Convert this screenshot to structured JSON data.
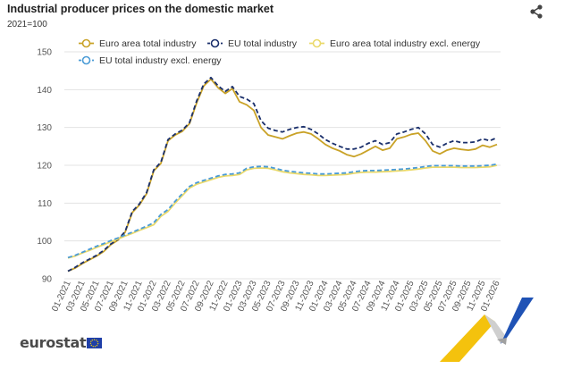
{
  "header": {
    "title": "Industrial producer prices on the domestic market",
    "subtitle": "2021=100",
    "share_icon": "share-icon"
  },
  "footer": {
    "logo_text": "eurostat",
    "flag_icon": "eu-flag-icon"
  },
  "colors": {
    "euro_area_total": "#c9a227",
    "eu_total": "#1a2f6b",
    "euro_area_excl_energy": "#ead96a",
    "eu_excl_energy": "#4a9bd6",
    "grid": "#e3e3e3",
    "deco_yellow": "#f4c20d",
    "deco_blue": "#1f52b5"
  },
  "chart_data": {
    "type": "line",
    "ylim": [
      90,
      150
    ],
    "yticks": [
      90,
      100,
      110,
      120,
      130,
      140,
      150
    ],
    "grid": "horizontal",
    "legend_position": "top",
    "x": [
      "01-2021",
      "02-2021",
      "03-2021",
      "04-2021",
      "05-2021",
      "06-2021",
      "07-2021",
      "08-2021",
      "09-2021",
      "10-2021",
      "11-2021",
      "12-2021",
      "01-2022",
      "02-2022",
      "03-2022",
      "04-2022",
      "05-2022",
      "06-2022",
      "07-2022",
      "08-2022",
      "09-2022",
      "10-2022",
      "11-2022",
      "12-2022",
      "01-2023",
      "02-2023",
      "03-2023",
      "04-2023",
      "05-2023",
      "06-2023",
      "07-2023",
      "08-2023",
      "09-2023",
      "10-2023",
      "11-2023",
      "12-2023",
      "01-2024",
      "02-2024",
      "03-2024",
      "04-2024",
      "05-2024",
      "06-2024",
      "07-2024",
      "08-2024",
      "09-2024",
      "10-2024",
      "11-2024",
      "12-2024",
      "01-2025",
      "02-2025",
      "03-2025",
      "04-2025",
      "05-2025",
      "06-2025",
      "07-2025",
      "08-2025",
      "09-2025",
      "10-2025",
      "11-2025",
      "12-2025",
      "01-2026"
    ],
    "xtick_labels": [
      "01-2021",
      "03-2021",
      "05-2021",
      "07-2021",
      "09-2021",
      "11-2021",
      "01-2022",
      "03-2022",
      "05-2022",
      "07-2022",
      "09-2022",
      "11-2022",
      "01-2023",
      "03-2023",
      "05-2023",
      "07-2023",
      "09-2023",
      "11-2023",
      "01-2024",
      "03-2024",
      "05-2024",
      "07-2024",
      "09-2024",
      "11-2024",
      "01-2025",
      "03-2025",
      "05-2025",
      "07-2025",
      "09-2025",
      "11-2025",
      "01-2026"
    ],
    "series": [
      {
        "name": "Euro area total industry",
        "color": "#c9a227",
        "style": "solid",
        "values": [
          92.0,
          92.8,
          94.0,
          95.0,
          96.0,
          97.2,
          99.0,
          100.2,
          102.3,
          107.5,
          109.5,
          112.5,
          118.5,
          120.5,
          126.5,
          128.0,
          129.0,
          131.0,
          136.5,
          141.0,
          142.8,
          140.5,
          139.0,
          140.3,
          136.8,
          136.0,
          134.5,
          130.0,
          128.0,
          127.5,
          127.0,
          127.8,
          128.5,
          128.8,
          128.3,
          127.0,
          125.5,
          124.5,
          123.8,
          122.8,
          122.3,
          123.0,
          124.0,
          125.0,
          124.0,
          124.5,
          127.0,
          127.5,
          128.2,
          128.5,
          126.5,
          123.8,
          123.0,
          124.0,
          124.5,
          124.2,
          124.0,
          124.3,
          125.3,
          124.8,
          125.5
        ]
      },
      {
        "name": "EU total industry",
        "color": "#1a2f6b",
        "style": "dashed",
        "values": [
          92.0,
          93.0,
          94.2,
          95.2,
          96.2,
          97.5,
          99.2,
          100.4,
          102.5,
          107.8,
          109.8,
          112.8,
          118.8,
          120.8,
          126.8,
          128.3,
          129.3,
          131.3,
          137.0,
          141.5,
          143.2,
          141.0,
          139.5,
          140.8,
          138.2,
          137.5,
          136.3,
          131.8,
          129.8,
          129.2,
          128.8,
          129.5,
          130.0,
          130.2,
          129.5,
          128.3,
          126.8,
          125.8,
          125.0,
          124.3,
          124.3,
          124.8,
          125.8,
          126.5,
          125.5,
          126.0,
          128.3,
          128.8,
          129.5,
          130.0,
          128.3,
          125.5,
          124.8,
          125.8,
          126.5,
          126.0,
          126.0,
          126.2,
          127.0,
          126.5,
          127.3
        ]
      },
      {
        "name": "Euro area total industry excl. energy",
        "color": "#ead96a",
        "style": "solid",
        "values": [
          95.5,
          96.0,
          96.8,
          97.5,
          98.3,
          99.0,
          99.8,
          100.5,
          101.3,
          102.0,
          102.8,
          103.5,
          104.3,
          106.5,
          107.8,
          110.0,
          112.0,
          114.0,
          115.0,
          115.6,
          116.2,
          116.8,
          117.2,
          117.3,
          117.6,
          118.8,
          119.2,
          119.3,
          119.2,
          118.8,
          118.3,
          118.0,
          117.8,
          117.6,
          117.5,
          117.3,
          117.3,
          117.4,
          117.5,
          117.6,
          117.9,
          118.1,
          118.2,
          118.2,
          118.3,
          118.4,
          118.5,
          118.6,
          118.8,
          119.0,
          119.3,
          119.5,
          119.5,
          119.5,
          119.5,
          119.4,
          119.4,
          119.4,
          119.5,
          119.6,
          120.0
        ]
      },
      {
        "name": "EU total industry excl. energy",
        "color": "#4a9bd6",
        "style": "dashed",
        "values": [
          95.6,
          96.2,
          97.0,
          97.8,
          98.6,
          99.3,
          100.1,
          100.8,
          101.6,
          102.3,
          103.1,
          103.9,
          104.8,
          107.0,
          108.3,
          110.5,
          112.5,
          114.4,
          115.4,
          116.0,
          116.6,
          117.2,
          117.6,
          117.7,
          118.0,
          119.2,
          119.6,
          119.7,
          119.6,
          119.2,
          118.7,
          118.4,
          118.2,
          118.0,
          117.9,
          117.7,
          117.7,
          117.8,
          117.9,
          118.0,
          118.3,
          118.5,
          118.6,
          118.6,
          118.7,
          118.8,
          118.9,
          119.0,
          119.2,
          119.4,
          119.7,
          119.9,
          119.9,
          119.9,
          119.9,
          119.8,
          119.8,
          119.8,
          119.9,
          120.0,
          120.3
        ]
      }
    ]
  }
}
